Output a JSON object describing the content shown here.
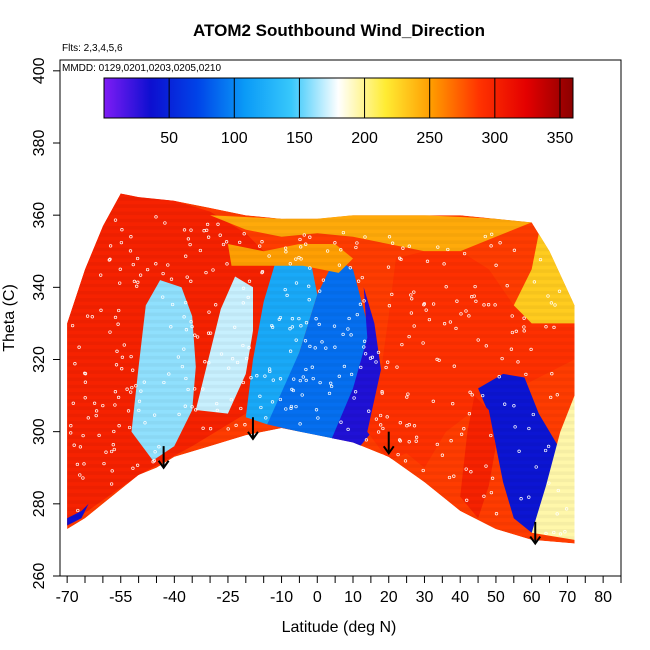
{
  "chart_data": {
    "type": "heatmap",
    "title": "ATOM2 Southbound Wind_Direction",
    "notes": [
      "Flts: 2,3,4,5,6",
      "MMDD: 0129,0201,0203,0205,0210"
    ],
    "xlabel": "Latitude (deg N)",
    "ylabel": "Theta (C)",
    "xlim": [
      -72,
      85
    ],
    "ylim": [
      260,
      403
    ],
    "x_ticks": [
      -70,
      -55,
      -40,
      -25,
      -10,
      0,
      10,
      20,
      30,
      40,
      50,
      60,
      70,
      80
    ],
    "x_minor_ticks": [
      -65,
      -60,
      -50,
      -45,
      -35,
      -30,
      -20,
      -15,
      -5,
      5,
      15,
      25,
      35,
      45,
      55,
      65,
      75,
      85
    ],
    "y_ticks": [
      260,
      280,
      300,
      320,
      340,
      360,
      380,
      400
    ],
    "colorbar": {
      "range": [
        0,
        360
      ],
      "ticks": [
        50,
        100,
        150,
        200,
        250,
        300,
        350
      ],
      "stops": [
        "#7f1cf5",
        "#0d0fd0",
        "#0044e8",
        "#0a9af7",
        "#38c8fb",
        "#ffffff",
        "#ffec33",
        "#ff9a00",
        "#ff3300",
        "#e40000",
        "#8b0000"
      ]
    },
    "floor": [
      {
        "x": -70,
        "y": 273
      },
      {
        "x": -65,
        "y": 276
      },
      {
        "x": -60,
        "y": 280
      },
      {
        "x": -55,
        "y": 284
      },
      {
        "x": -50,
        "y": 288
      },
      {
        "x": -45,
        "y": 290
      },
      {
        "x": -40,
        "y": 293
      },
      {
        "x": -30,
        "y": 296
      },
      {
        "x": -20,
        "y": 299
      },
      {
        "x": -10,
        "y": 301
      },
      {
        "x": 0,
        "y": 299
      },
      {
        "x": 10,
        "y": 297
      },
      {
        "x": 20,
        "y": 293
      },
      {
        "x": 30,
        "y": 286
      },
      {
        "x": 40,
        "y": 278
      },
      {
        "x": 50,
        "y": 273
      },
      {
        "x": 60,
        "y": 270
      },
      {
        "x": 72,
        "y": 269
      }
    ],
    "ceiling": [
      {
        "x": -70,
        "y": 330
      },
      {
        "x": -65,
        "y": 345
      },
      {
        "x": -60,
        "y": 357
      },
      {
        "x": -55,
        "y": 366
      },
      {
        "x": -50,
        "y": 365
      },
      {
        "x": -40,
        "y": 364
      },
      {
        "x": -30,
        "y": 362
      },
      {
        "x": -20,
        "y": 360
      },
      {
        "x": -10,
        "y": 359
      },
      {
        "x": 0,
        "y": 359
      },
      {
        "x": 10,
        "y": 360
      },
      {
        "x": 20,
        "y": 360
      },
      {
        "x": 30,
        "y": 360
      },
      {
        "x": 40,
        "y": 360
      },
      {
        "x": 50,
        "y": 359
      },
      {
        "x": 60,
        "y": 358
      },
      {
        "x": 65,
        "y": 350
      },
      {
        "x": 72,
        "y": 335
      }
    ],
    "wind_regions": [
      {
        "points": [
          [
            -70,
            274
          ],
          [
            -70,
            330
          ],
          [
            -65,
            345
          ],
          [
            -60,
            357
          ],
          [
            -55,
            366
          ],
          [
            -40,
            364
          ],
          [
            -30,
            361
          ],
          [
            -20,
            355
          ],
          [
            -10,
            345
          ],
          [
            -5,
            335
          ],
          [
            -10,
            320
          ],
          [
            -20,
            305
          ],
          [
            -35,
            296
          ],
          [
            -50,
            288
          ],
          [
            -60,
            281
          ]
        ],
        "value": 300
      },
      {
        "points": [
          [
            -52,
            300
          ],
          [
            -50,
            318
          ],
          [
            -48,
            335
          ],
          [
            -44,
            342
          ],
          [
            -38,
            340
          ],
          [
            -35,
            332
          ],
          [
            -34,
            318
          ],
          [
            -35,
            306
          ],
          [
            -40,
            296
          ],
          [
            -46,
            292
          ]
        ],
        "value": 160
      },
      {
        "points": [
          [
            -34,
            306
          ],
          [
            -30,
            322
          ],
          [
            -27,
            334
          ],
          [
            -23,
            343
          ],
          [
            -18,
            340
          ],
          [
            -18,
            328
          ],
          [
            -20,
            316
          ],
          [
            -25,
            305
          ]
        ],
        "value": 170
      },
      {
        "points": [
          [
            -20,
            304
          ],
          [
            -18,
            320
          ],
          [
            -15,
            336
          ],
          [
            -12,
            346
          ],
          [
            -8,
            350
          ],
          [
            -2,
            348
          ],
          [
            0,
            338
          ],
          [
            -5,
            322
          ],
          [
            -10,
            310
          ],
          [
            -14,
            302
          ]
        ],
        "value": 120
      },
      {
        "points": [
          [
            -14,
            302
          ],
          [
            -5,
            322
          ],
          [
            0,
            338
          ],
          [
            5,
            348
          ],
          [
            10,
            345
          ],
          [
            14,
            330
          ],
          [
            15,
            316
          ],
          [
            12,
            303
          ],
          [
            5,
            298
          ],
          [
            -5,
            300
          ]
        ],
        "value": 90
      },
      {
        "points": [
          [
            4,
            298
          ],
          [
            10,
            312
          ],
          [
            14,
            326
          ],
          [
            13,
            340
          ],
          [
            16,
            330
          ],
          [
            18,
            316
          ],
          [
            17,
            302
          ],
          [
            12,
            296
          ]
        ],
        "value": 30
      },
      {
        "points": [
          [
            -25,
            352
          ],
          [
            -15,
            350
          ],
          [
            -5,
            352
          ],
          [
            5,
            352
          ],
          [
            10,
            348
          ],
          [
            6,
            344
          ],
          [
            -4,
            346
          ],
          [
            -14,
            346
          ],
          [
            -24,
            346
          ]
        ],
        "value": 250
      },
      {
        "points": [
          [
            -30,
            360
          ],
          [
            -20,
            356
          ],
          [
            -10,
            354
          ],
          [
            0,
            355
          ],
          [
            10,
            354
          ],
          [
            20,
            352
          ],
          [
            30,
            350
          ],
          [
            40,
            350
          ],
          [
            50,
            354
          ],
          [
            60,
            358
          ],
          [
            50,
            359
          ],
          [
            30,
            360
          ],
          [
            10,
            360
          ],
          [
            -10,
            359
          ]
        ],
        "value": 245
      },
      {
        "points": [
          [
            14,
            300
          ],
          [
            18,
            318
          ],
          [
            20,
            332
          ],
          [
            22,
            348
          ],
          [
            30,
            350
          ],
          [
            40,
            350
          ],
          [
            48,
            345
          ],
          [
            55,
            335
          ],
          [
            60,
            330
          ],
          [
            72,
            330
          ],
          [
            72,
            320
          ],
          [
            60,
            314
          ],
          [
            52,
            310
          ],
          [
            44,
            306
          ],
          [
            36,
            300
          ],
          [
            30,
            290
          ],
          [
            25,
            294
          ],
          [
            20,
            292
          ]
        ],
        "value": 290
      },
      {
        "points": [
          [
            55,
            335
          ],
          [
            60,
            345
          ],
          [
            62,
            355
          ],
          [
            66,
            350
          ],
          [
            72,
            335
          ],
          [
            72,
            330
          ],
          [
            60,
            330
          ]
        ],
        "value": 230
      },
      {
        "points": [
          [
            45,
            312
          ],
          [
            48,
            305
          ],
          [
            50,
            296
          ],
          [
            52,
            286
          ],
          [
            55,
            276
          ],
          [
            60,
            272
          ],
          [
            66,
            280
          ],
          [
            68,
            295
          ],
          [
            62,
            305
          ],
          [
            58,
            315
          ],
          [
            52,
            316
          ]
        ],
        "value": 40
      },
      {
        "points": [
          [
            60,
            272
          ],
          [
            64,
            285
          ],
          [
            68,
            300
          ],
          [
            72,
            310
          ],
          [
            72,
            270
          ]
        ],
        "value": 195
      },
      {
        "points": [
          [
            40,
            282
          ],
          [
            42,
            300
          ],
          [
            44,
            310
          ],
          [
            48,
            306
          ],
          [
            50,
            296
          ],
          [
            48,
            285
          ],
          [
            45,
            276
          ]
        ],
        "value": 300
      },
      {
        "points": [
          [
            -70,
            274
          ],
          [
            -66,
            276
          ],
          [
            -64,
            280
          ],
          [
            -66,
            278
          ],
          [
            -70,
            276
          ]
        ],
        "value": 35
      }
    ],
    "arrows": [
      {
        "x": -43,
        "y_top": 296,
        "y_bottom": 290
      },
      {
        "x": -18,
        "y_top": 304,
        "y_bottom": 298
      },
      {
        "x": 20,
        "y_top": 300,
        "y_bottom": 294
      },
      {
        "x": 61,
        "y_top": 275,
        "y_bottom": 269
      }
    ]
  }
}
